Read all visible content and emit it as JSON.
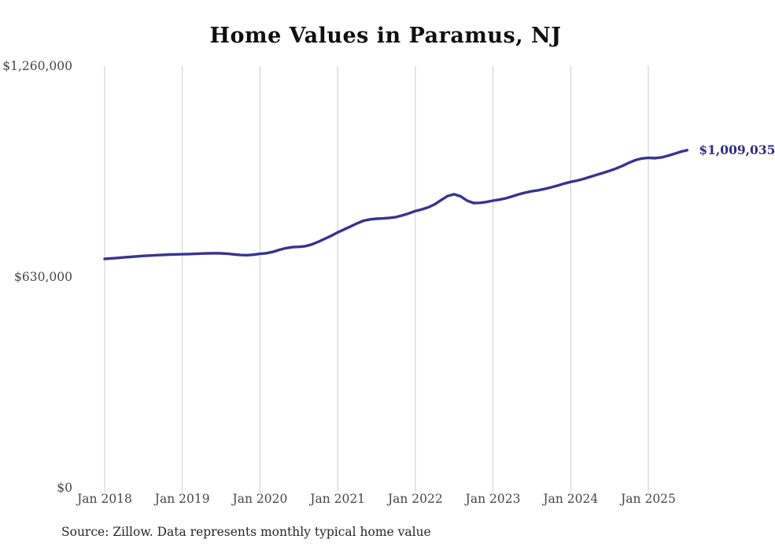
{
  "title": "Home Values in Paramus, NJ",
  "source_note": "Source: Zillow. Data represents monthly typical home value",
  "end_label": "$1,009,035",
  "colors": {
    "line": "#3b3291",
    "end_label_text": "#322b86",
    "grid": "#cccccc",
    "axis_text": "#474747",
    "title_text": "#0f0f0f",
    "source_text": "#262626",
    "background": "#ffffff"
  },
  "chart_data": {
    "type": "line",
    "title": "Home Values in Paramus, NJ",
    "xlabel": "",
    "ylabel": "",
    "ylim": [
      0,
      1260000
    ],
    "grid": "vertical-only",
    "legend": "none",
    "y_ticks": [
      {
        "label": "$0",
        "value": 0
      },
      {
        "label": "$630,000",
        "value": 630000
      },
      {
        "label": "$1,260,000",
        "value": 1260000
      }
    ],
    "x_ticks": [
      {
        "label": "Jan 2018",
        "month_index": 0
      },
      {
        "label": "Jan 2019",
        "month_index": 12
      },
      {
        "label": "Jan 2020",
        "month_index": 24
      },
      {
        "label": "Jan 2021",
        "month_index": 36
      },
      {
        "label": "Jan 2022",
        "month_index": 48
      },
      {
        "label": "Jan 2023",
        "month_index": 60
      },
      {
        "label": "Jan 2024",
        "month_index": 72
      },
      {
        "label": "Jan 2025",
        "month_index": 84
      }
    ],
    "series_name": "Typical home value",
    "dates": [
      "2018-01",
      "2018-02",
      "2018-03",
      "2018-04",
      "2018-05",
      "2018-06",
      "2018-07",
      "2018-08",
      "2018-09",
      "2018-10",
      "2018-11",
      "2018-12",
      "2019-01",
      "2019-02",
      "2019-03",
      "2019-04",
      "2019-05",
      "2019-06",
      "2019-07",
      "2019-08",
      "2019-09",
      "2019-10",
      "2019-11",
      "2019-12",
      "2020-01",
      "2020-02",
      "2020-03",
      "2020-04",
      "2020-05",
      "2020-06",
      "2020-07",
      "2020-08",
      "2020-09",
      "2020-10",
      "2020-11",
      "2020-12",
      "2021-01",
      "2021-02",
      "2021-03",
      "2021-04",
      "2021-05",
      "2021-06",
      "2021-07",
      "2021-08",
      "2021-09",
      "2021-10",
      "2021-11",
      "2021-12",
      "2022-01",
      "2022-02",
      "2022-03",
      "2022-04",
      "2022-05",
      "2022-06",
      "2022-07",
      "2022-08",
      "2022-09",
      "2022-10",
      "2022-11",
      "2022-12",
      "2023-01",
      "2023-02",
      "2023-03",
      "2023-04",
      "2023-05",
      "2023-06",
      "2023-07",
      "2023-08",
      "2023-09",
      "2023-10",
      "2023-11",
      "2023-12",
      "2024-01",
      "2024-02",
      "2024-03",
      "2024-04",
      "2024-05",
      "2024-06",
      "2024-07",
      "2024-08",
      "2024-09",
      "2024-10",
      "2024-11",
      "2024-12",
      "2025-01",
      "2025-02",
      "2025-03",
      "2025-04",
      "2025-05",
      "2025-06",
      "2025-07"
    ],
    "values": [
      684000,
      685500,
      687000,
      688500,
      690000,
      691500,
      693000,
      694000,
      695000,
      696000,
      697000,
      697500,
      698000,
      698500,
      699000,
      700000,
      700500,
      701000,
      700500,
      699500,
      697500,
      695500,
      695000,
      696500,
      699000,
      701000,
      705000,
      711000,
      716000,
      719000,
      720000,
      722000,
      727000,
      735000,
      744000,
      753000,
      763000,
      772000,
      781000,
      790000,
      798000,
      802000,
      804000,
      805000,
      806500,
      809000,
      814000,
      820000,
      827000,
      832000,
      838000,
      847000,
      860000,
      872000,
      877000,
      871000,
      858000,
      851000,
      851500,
      854000,
      858000,
      861000,
      865000,
      871000,
      877000,
      882000,
      886000,
      889000,
      893000,
      898000,
      903000,
      909000,
      914000,
      918000,
      923000,
      929000,
      935000,
      941000,
      947000,
      954000,
      962000,
      971000,
      979000,
      984000,
      986000,
      985000,
      987000,
      992000,
      998000,
      1004000,
      1009035
    ]
  }
}
